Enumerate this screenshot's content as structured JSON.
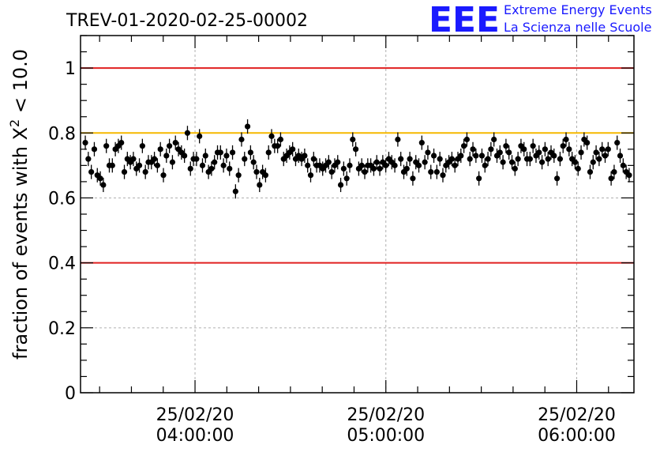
{
  "chart_data": {
    "type": "scatter",
    "title": "TREV-01-2020-02-25-00002",
    "ylabel": "fraction of events with X² < 10.0",
    "ylabel_main": "fraction of events with X",
    "ylabel_sup": "2",
    "ylabel_tail": " < 10.0",
    "xlabel": "",
    "ylim": [
      0,
      1.1
    ],
    "xlim": [
      "25/02/20 03:24:00",
      "25/02/20 06:18:00"
    ],
    "grid": true,
    "x_unit": "minutes after 25/02/20 03:24:00",
    "y_ticks": [
      {
        "value": 0,
        "label": "0"
      },
      {
        "value": 0.2,
        "label": "0.2"
      },
      {
        "value": 0.4,
        "label": "0.4"
      },
      {
        "value": 0.6,
        "label": "0.6"
      },
      {
        "value": 0.8,
        "label": "0.8"
      },
      {
        "value": 1.0,
        "label": "1"
      }
    ],
    "x_ticks": [
      {
        "time": "25/02/20 04:00:00",
        "date": "25/02/20",
        "clock": "04:00:00"
      },
      {
        "time": "25/02/20 05:00:00",
        "date": "25/02/20",
        "clock": "05:00:00"
      },
      {
        "time": "25/02/20 06:00:00",
        "date": "25/02/20",
        "clock": "06:00:00"
      }
    ],
    "reference_lines": [
      {
        "value": 1.0,
        "color": "#e02020"
      },
      {
        "value": 0.8,
        "color": "#f5b800"
      },
      {
        "value": 0.4,
        "color": "#e02020"
      }
    ],
    "error": 0.022,
    "marker_color": "#000000",
    "series": [
      {
        "values": [
          0.77,
          0.72,
          0.68,
          0.75,
          0.67,
          0.66,
          0.64,
          0.76,
          0.7,
          0.7,
          0.75,
          0.76,
          0.77,
          0.68,
          0.72,
          0.71,
          0.72,
          0.69,
          0.7,
          0.76,
          0.68,
          0.71,
          0.71,
          0.72,
          0.7,
          0.75,
          0.67,
          0.73,
          0.76,
          0.71,
          0.77,
          0.75,
          0.74,
          0.73,
          0.8,
          0.69,
          0.72,
          0.72,
          0.79,
          0.7,
          0.73,
          0.68,
          0.69,
          0.71,
          0.74,
          0.74,
          0.7,
          0.73,
          0.69,
          0.74,
          0.62,
          0.67,
          0.78,
          0.72,
          0.82,
          0.74,
          0.71,
          0.68,
          0.64,
          0.68,
          0.67,
          0.74,
          0.79,
          0.76,
          0.76,
          0.78,
          0.72,
          0.73,
          0.74,
          0.75,
          0.72,
          0.73,
          0.72,
          0.73,
          0.7,
          0.67,
          0.72,
          0.7,
          0.7,
          0.69,
          0.7,
          0.71,
          0.68,
          0.7,
          0.71,
          0.64,
          0.69,
          0.66,
          0.7,
          0.78,
          0.75,
          0.69,
          0.7,
          0.68,
          0.7,
          0.7,
          0.69,
          0.71,
          0.69,
          0.71,
          0.7,
          0.72,
          0.71,
          0.7,
          0.78,
          0.72,
          0.68,
          0.69,
          0.72,
          0.66,
          0.71,
          0.7,
          0.77,
          0.71,
          0.74,
          0.68,
          0.73,
          0.68,
          0.72,
          0.67,
          0.7,
          0.71,
          0.72,
          0.7,
          0.72,
          0.73,
          0.76,
          0.78,
          0.72,
          0.75,
          0.73,
          0.66,
          0.73,
          0.7,
          0.72,
          0.75,
          0.78,
          0.73,
          0.74,
          0.71,
          0.76,
          0.74,
          0.71,
          0.69,
          0.72,
          0.76,
          0.75,
          0.72,
          0.72,
          0.76,
          0.73,
          0.74,
          0.71,
          0.75,
          0.72,
          0.74,
          0.73,
          0.66,
          0.72,
          0.76,
          0.78,
          0.75,
          0.72,
          0.71,
          0.69,
          0.74,
          0.78,
          0.77,
          0.68,
          0.71,
          0.74,
          0.72,
          0.75,
          0.73,
          0.75,
          0.66,
          0.68,
          0.77,
          0.73,
          0.7,
          0.68,
          0.67
        ]
      }
    ]
  },
  "logo": {
    "letters": "EEE",
    "line1": "Extreme Energy Events",
    "line2": "La Scienza nelle Scuole"
  }
}
